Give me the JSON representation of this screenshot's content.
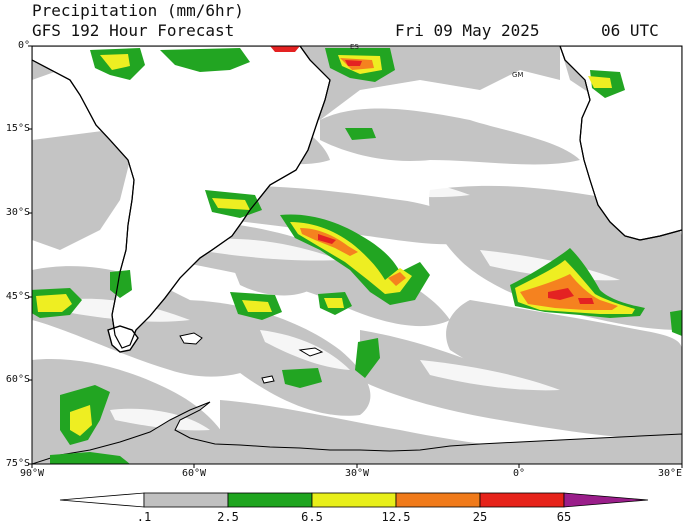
{
  "header": {
    "variable": "Precipitation (mm/6hr)",
    "model": "GFS 192 Hour Forecast",
    "valid_date": "Fri 09 May 2025",
    "valid_time": "06 UTC"
  },
  "map": {
    "region": "South America / South Atlantic",
    "lat_labels": [
      "0°",
      "15°S",
      "30°S",
      "45°S",
      "60°S",
      "75°S"
    ],
    "lon_labels": [
      "90°W",
      "60°W",
      "30°W",
      "0°",
      "30°E"
    ],
    "place_markers": [
      "ES",
      "GM"
    ]
  },
  "colorbar": {
    "labels": [
      ".1",
      "2.5",
      "6.5",
      "12.5",
      "25",
      "65"
    ],
    "colors": [
      "#ffffff",
      "#c0c0c0",
      "#1fa51f",
      "#e8ef1a",
      "#f07a1a",
      "#e6231a",
      "#9a1e8a"
    ]
  },
  "colors": {
    "light_precip": "#c4c4c4",
    "moderate_precip": "#22a522",
    "heavy_precip": "#eeee22",
    "very_heavy_precip": "#f5821f",
    "extreme_precip": "#e42222",
    "land": "#ffffff",
    "coastline": "#000000"
  }
}
